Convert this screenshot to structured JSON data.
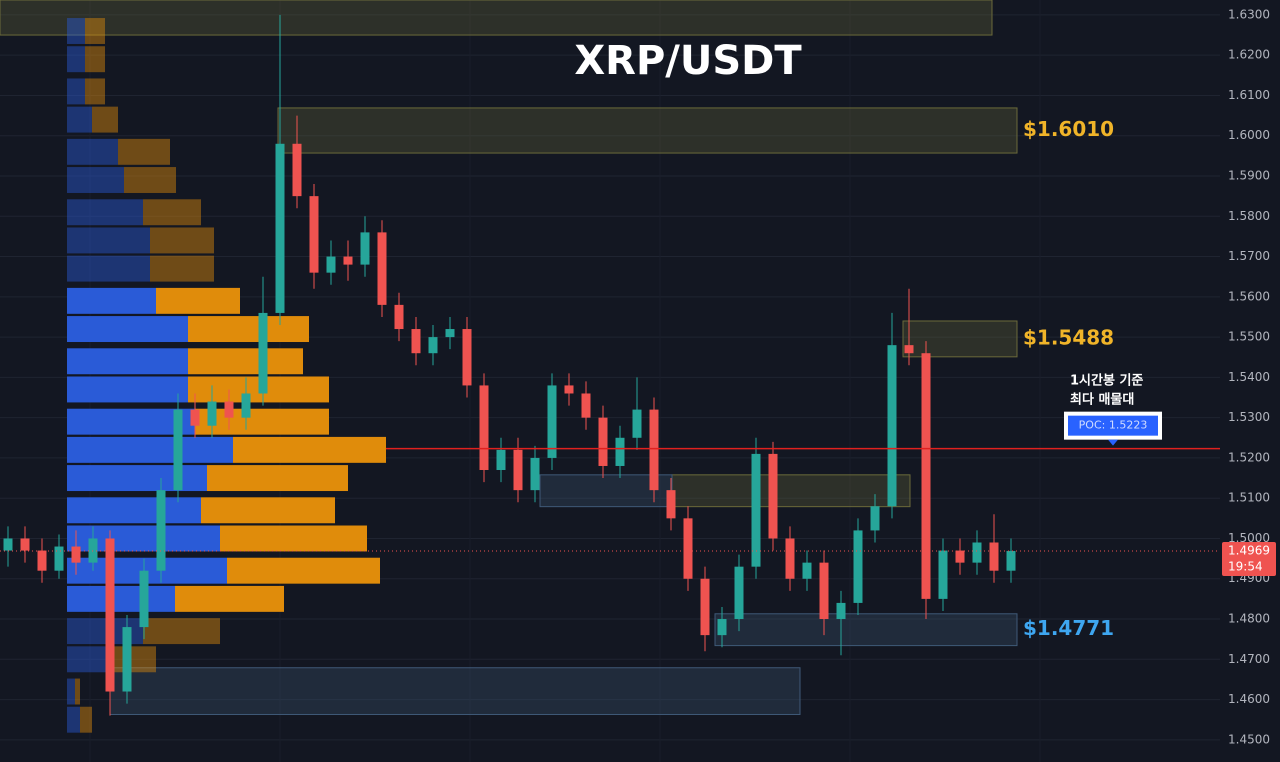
{
  "chart_data": {
    "type": "candlestick",
    "title": "XRP/USDT",
    "up_color": "#26a69a",
    "down_color": "#ef5350",
    "ylim": [
      1.4445,
      1.6337
    ],
    "yticks": [
      {
        "value": 1.63,
        "label": "1.6300"
      },
      {
        "value": 1.62,
        "label": "1.6200"
      },
      {
        "value": 1.61,
        "label": "1.6100"
      },
      {
        "value": 1.6,
        "label": "1.6000"
      },
      {
        "value": 1.59,
        "label": "1.5900"
      },
      {
        "value": 1.58,
        "label": "1.5800"
      },
      {
        "value": 1.57,
        "label": "1.5700"
      },
      {
        "value": 1.56,
        "label": "1.5600"
      },
      {
        "value": 1.55,
        "label": "1.5500"
      },
      {
        "value": 1.54,
        "label": "1.5400"
      },
      {
        "value": 1.53,
        "label": "1.5300"
      },
      {
        "value": 1.52,
        "label": "1.5200"
      },
      {
        "value": 1.51,
        "label": "1.5100"
      },
      {
        "value": 1.5,
        "label": "1.5000"
      },
      {
        "value": 1.49,
        "label": "1.4900"
      },
      {
        "value": 1.48,
        "label": "1.4800"
      },
      {
        "value": 1.47,
        "label": "1.4700"
      },
      {
        "value": 1.46,
        "label": "1.4600"
      },
      {
        "value": 1.45,
        "label": "1.4500"
      }
    ],
    "grid": true,
    "ohlc": [
      [
        1.497,
        1.503,
        1.493,
        1.5
      ],
      [
        1.5,
        1.503,
        1.494,
        1.497
      ],
      [
        1.497,
        1.5,
        1.489,
        1.492
      ],
      [
        1.492,
        1.501,
        1.49,
        1.498
      ],
      [
        1.498,
        1.502,
        1.491,
        1.494
      ],
      [
        1.494,
        1.503,
        1.492,
        1.5
      ],
      [
        1.5,
        1.502,
        1.456,
        1.462
      ],
      [
        1.462,
        1.481,
        1.459,
        1.478
      ],
      [
        1.478,
        1.495,
        1.475,
        1.492
      ],
      [
        1.492,
        1.515,
        1.489,
        1.512
      ],
      [
        1.512,
        1.536,
        1.509,
        1.532
      ],
      [
        1.532,
        1.536,
        1.525,
        1.528
      ],
      [
        1.528,
        1.538,
        1.525,
        1.534
      ],
      [
        1.534,
        1.537,
        1.527,
        1.53
      ],
      [
        1.53,
        1.54,
        1.527,
        1.536
      ],
      [
        1.536,
        1.565,
        1.533,
        1.556
      ],
      [
        1.556,
        1.63,
        1.553,
        1.598
      ],
      [
        1.598,
        1.605,
        1.582,
        1.585
      ],
      [
        1.585,
        1.588,
        1.562,
        1.566
      ],
      [
        1.566,
        1.574,
        1.563,
        1.57
      ],
      [
        1.57,
        1.574,
        1.564,
        1.568
      ],
      [
        1.568,
        1.58,
        1.565,
        1.576
      ],
      [
        1.576,
        1.579,
        1.555,
        1.558
      ],
      [
        1.558,
        1.561,
        1.549,
        1.552
      ],
      [
        1.552,
        1.555,
        1.543,
        1.546
      ],
      [
        1.546,
        1.553,
        1.543,
        1.55
      ],
      [
        1.55,
        1.555,
        1.547,
        1.552
      ],
      [
        1.552,
        1.555,
        1.535,
        1.538
      ],
      [
        1.538,
        1.541,
        1.514,
        1.517
      ],
      [
        1.517,
        1.525,
        1.514,
        1.522
      ],
      [
        1.522,
        1.525,
        1.509,
        1.512
      ],
      [
        1.512,
        1.523,
        1.509,
        1.52
      ],
      [
        1.52,
        1.541,
        1.517,
        1.538
      ],
      [
        1.538,
        1.541,
        1.533,
        1.536
      ],
      [
        1.536,
        1.539,
        1.527,
        1.53
      ],
      [
        1.53,
        1.533,
        1.515,
        1.518
      ],
      [
        1.518,
        1.528,
        1.515,
        1.525
      ],
      [
        1.525,
        1.54,
        1.522,
        1.532
      ],
      [
        1.532,
        1.535,
        1.509,
        1.512
      ],
      [
        1.512,
        1.515,
        1.502,
        1.505
      ],
      [
        1.505,
        1.508,
        1.487,
        1.49
      ],
      [
        1.49,
        1.493,
        1.472,
        1.476
      ],
      [
        1.476,
        1.483,
        1.473,
        1.48
      ],
      [
        1.48,
        1.496,
        1.477,
        1.493
      ],
      [
        1.493,
        1.525,
        1.49,
        1.521
      ],
      [
        1.521,
        1.524,
        1.497,
        1.5
      ],
      [
        1.5,
        1.503,
        1.487,
        1.49
      ],
      [
        1.49,
        1.497,
        1.487,
        1.494
      ],
      [
        1.494,
        1.497,
        1.476,
        1.48
      ],
      [
        1.48,
        1.487,
        1.471,
        1.484
      ],
      [
        1.484,
        1.505,
        1.481,
        1.502
      ],
      [
        1.502,
        1.511,
        1.499,
        1.508
      ],
      [
        1.508,
        1.556,
        1.505,
        1.548
      ],
      [
        1.548,
        1.562,
        1.543,
        1.546
      ],
      [
        1.546,
        1.549,
        1.48,
        1.485
      ],
      [
        1.485,
        1.5,
        1.482,
        1.497
      ],
      [
        1.497,
        1.5,
        1.491,
        1.494
      ],
      [
        1.494,
        1.502,
        1.491,
        1.499
      ],
      [
        1.499,
        1.506,
        1.489,
        1.492
      ],
      [
        1.492,
        1.5,
        1.489,
        1.4969
      ]
    ],
    "volume_profile": {
      "buy_color": "#2a5bd7",
      "sell_color": "#e08c0b",
      "prices": [
        1.626,
        1.619,
        1.611,
        1.604,
        1.596,
        1.589,
        1.581,
        1.574,
        1.567,
        1.559,
        1.552,
        1.544,
        1.537,
        1.529,
        1.522,
        1.515,
        1.507,
        1.5,
        1.492,
        1.485,
        1.477,
        1.47,
        1.462,
        1.455
      ],
      "buy": [
        18,
        18,
        18,
        25,
        51,
        57,
        76,
        83,
        83,
        89,
        121,
        121,
        121,
        128,
        166,
        140,
        134,
        153,
        160,
        108,
        76,
        44,
        8,
        13
      ],
      "sell": [
        20,
        20,
        20,
        26,
        52,
        52,
        58,
        64,
        64,
        84,
        121,
        115,
        141,
        134,
        153,
        141,
        134,
        147,
        153,
        109,
        77,
        45,
        5,
        12
      ]
    },
    "zones": [
      {
        "top": 1.6337,
        "bottom": 1.625,
        "color": "#6b6a3a"
      },
      {
        "top": 1.6069,
        "bottom": 1.5957,
        "color": "#6b6a3a",
        "label": "$1.6010",
        "label_color": "#f0b429"
      },
      {
        "top": 1.554,
        "bottom": 1.5451,
        "color": "#6b6a3a",
        "label": "$1.5488",
        "label_color": "#f0b429"
      },
      {
        "top": 1.5158,
        "bottom": 1.5079,
        "color": "#6b6a3a"
      },
      {
        "top": 1.5158,
        "bottom": 1.5079,
        "color": "#3f5a78"
      },
      {
        "top": 1.4813,
        "bottom": 1.4734,
        "color": "#3f5a78",
        "label": "$1.4771",
        "label_color": "#3ea6f0"
      },
      {
        "top": 1.4679,
        "bottom": 1.4563,
        "color": "#3f5a78"
      }
    ],
    "poc": {
      "value": 1.5223,
      "label": "POC: 1.5223",
      "color": "#e0211f"
    },
    "annotation": [
      "1시간봉 기준",
      "최다 매물대"
    ],
    "current_price": 1.4969,
    "countdown": "19:54"
  }
}
